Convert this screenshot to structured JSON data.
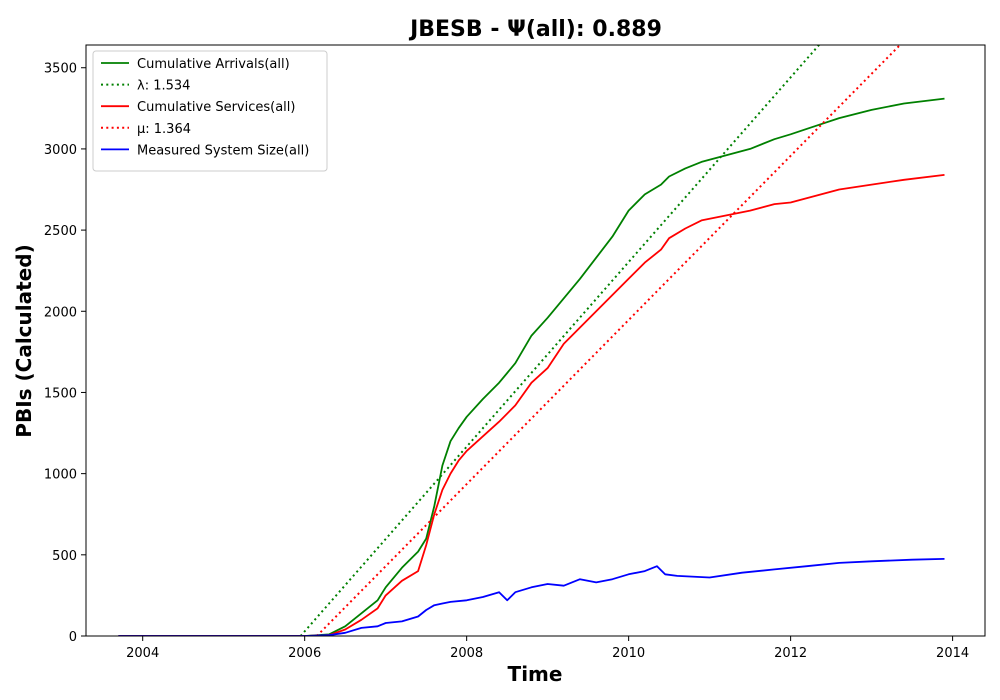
{
  "chart_data": {
    "type": "line",
    "title": "JBESB -  Ψ(all): 0.889",
    "xlabel": "Time",
    "ylabel": "PBIs (Calculated)",
    "xlim": [
      2003.3,
      2014.4
    ],
    "ylim": [
      0,
      3640
    ],
    "x_ticks": [
      "2004",
      "2006",
      "2008",
      "2010",
      "2012",
      "2014"
    ],
    "y_ticks": [
      "0",
      "500",
      "1000",
      "1500",
      "2000",
      "2500",
      "3000",
      "3500"
    ],
    "grid": false,
    "legend_position": "top-left",
    "series": [
      {
        "name": "Cumulative Arrivals(all)",
        "color": "#008000",
        "style": "solid",
        "x": [
          2003.7,
          2004.0,
          2005.0,
          2006.0,
          2006.3,
          2006.5,
          2006.7,
          2006.9,
          2007.0,
          2007.2,
          2007.4,
          2007.5,
          2007.6,
          2007.7,
          2007.8,
          2007.9,
          2008.0,
          2008.2,
          2008.4,
          2008.6,
          2008.8,
          2009.0,
          2009.2,
          2009.4,
          2009.6,
          2009.8,
          2010.0,
          2010.2,
          2010.4,
          2010.5,
          2010.7,
          2010.9,
          2011.2,
          2011.5,
          2011.8,
          2012.0,
          2012.3,
          2012.6,
          2013.0,
          2013.4,
          2013.9
        ],
        "y": [
          0,
          0,
          0,
          0,
          10,
          60,
          140,
          220,
          300,
          420,
          520,
          600,
          800,
          1050,
          1200,
          1280,
          1350,
          1460,
          1560,
          1680,
          1850,
          1960,
          2080,
          2200,
          2330,
          2460,
          2620,
          2720,
          2780,
          2830,
          2880,
          2920,
          2960,
          3000,
          3060,
          3090,
          3140,
          3190,
          3240,
          3280,
          3310
        ]
      },
      {
        "name": "λ: 1.534",
        "color": "#008000",
        "style": "dotted",
        "x": [
          2005.95,
          2012.35
        ],
        "y": [
          0,
          3640
        ]
      },
      {
        "name": "Cumulative Services(all)",
        "color": "#ff0000",
        "style": "solid",
        "x": [
          2003.7,
          2004.0,
          2005.0,
          2006.0,
          2006.3,
          2006.5,
          2006.7,
          2006.9,
          2007.0,
          2007.2,
          2007.4,
          2007.5,
          2007.6,
          2007.7,
          2007.8,
          2007.9,
          2008.0,
          2008.2,
          2008.4,
          2008.6,
          2008.8,
          2009.0,
          2009.2,
          2009.4,
          2009.6,
          2009.8,
          2010.0,
          2010.2,
          2010.4,
          2010.5,
          2010.7,
          2010.9,
          2011.2,
          2011.5,
          2011.8,
          2012.0,
          2012.3,
          2012.6,
          2013.0,
          2013.4,
          2013.9
        ],
        "y": [
          0,
          0,
          0,
          0,
          5,
          40,
          100,
          170,
          250,
          340,
          400,
          560,
          750,
          900,
          1000,
          1080,
          1140,
          1230,
          1320,
          1420,
          1560,
          1650,
          1800,
          1900,
          2000,
          2100,
          2200,
          2300,
          2380,
          2450,
          2510,
          2560,
          2590,
          2620,
          2660,
          2670,
          2710,
          2750,
          2780,
          2810,
          2840
        ]
      },
      {
        "name": "μ: 1.364",
        "color": "#ff0000",
        "style": "dotted",
        "x": [
          2006.15,
          2013.35
        ],
        "y": [
          0,
          3640
        ]
      },
      {
        "name": "Measured System Size(all)",
        "color": "#0000ff",
        "style": "solid",
        "x": [
          2003.7,
          2004.0,
          2005.0,
          2006.0,
          2006.3,
          2006.5,
          2006.7,
          2006.9,
          2007.0,
          2007.2,
          2007.4,
          2007.5,
          2007.6,
          2007.7,
          2007.8,
          2008.0,
          2008.2,
          2008.4,
          2008.5,
          2008.6,
          2008.8,
          2009.0,
          2009.2,
          2009.4,
          2009.6,
          2009.8,
          2010.0,
          2010.2,
          2010.35,
          2010.45,
          2010.6,
          2011.0,
          2011.4,
          2011.8,
          2012.2,
          2012.6,
          2013.0,
          2013.5,
          2013.9
        ],
        "y": [
          0,
          0,
          0,
          0,
          5,
          20,
          50,
          60,
          80,
          90,
          120,
          160,
          190,
          200,
          210,
          220,
          240,
          270,
          220,
          270,
          300,
          320,
          310,
          350,
          330,
          350,
          380,
          400,
          430,
          380,
          370,
          360,
          390,
          410,
          430,
          450,
          460,
          470,
          475
        ]
      }
    ]
  }
}
